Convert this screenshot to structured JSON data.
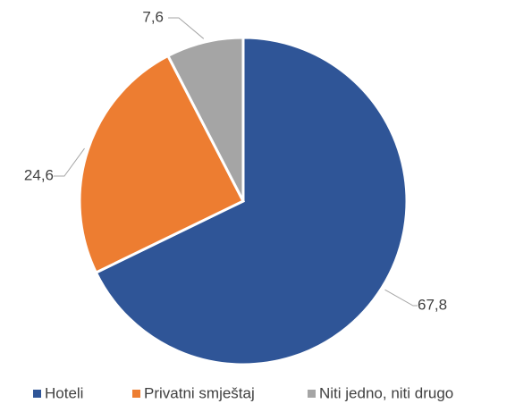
{
  "chart_data": {
    "type": "pie",
    "categories": [
      "Hoteli",
      "Privatni smještaj",
      "Niti jedno, niti drugo"
    ],
    "values": [
      67.8,
      24.6,
      7.6
    ],
    "value_labels": [
      "67,8",
      "24,6",
      "7,6"
    ],
    "colors": [
      "#2F5597",
      "#ED7D31",
      "#A5A5A5"
    ],
    "legend": "bottom"
  }
}
